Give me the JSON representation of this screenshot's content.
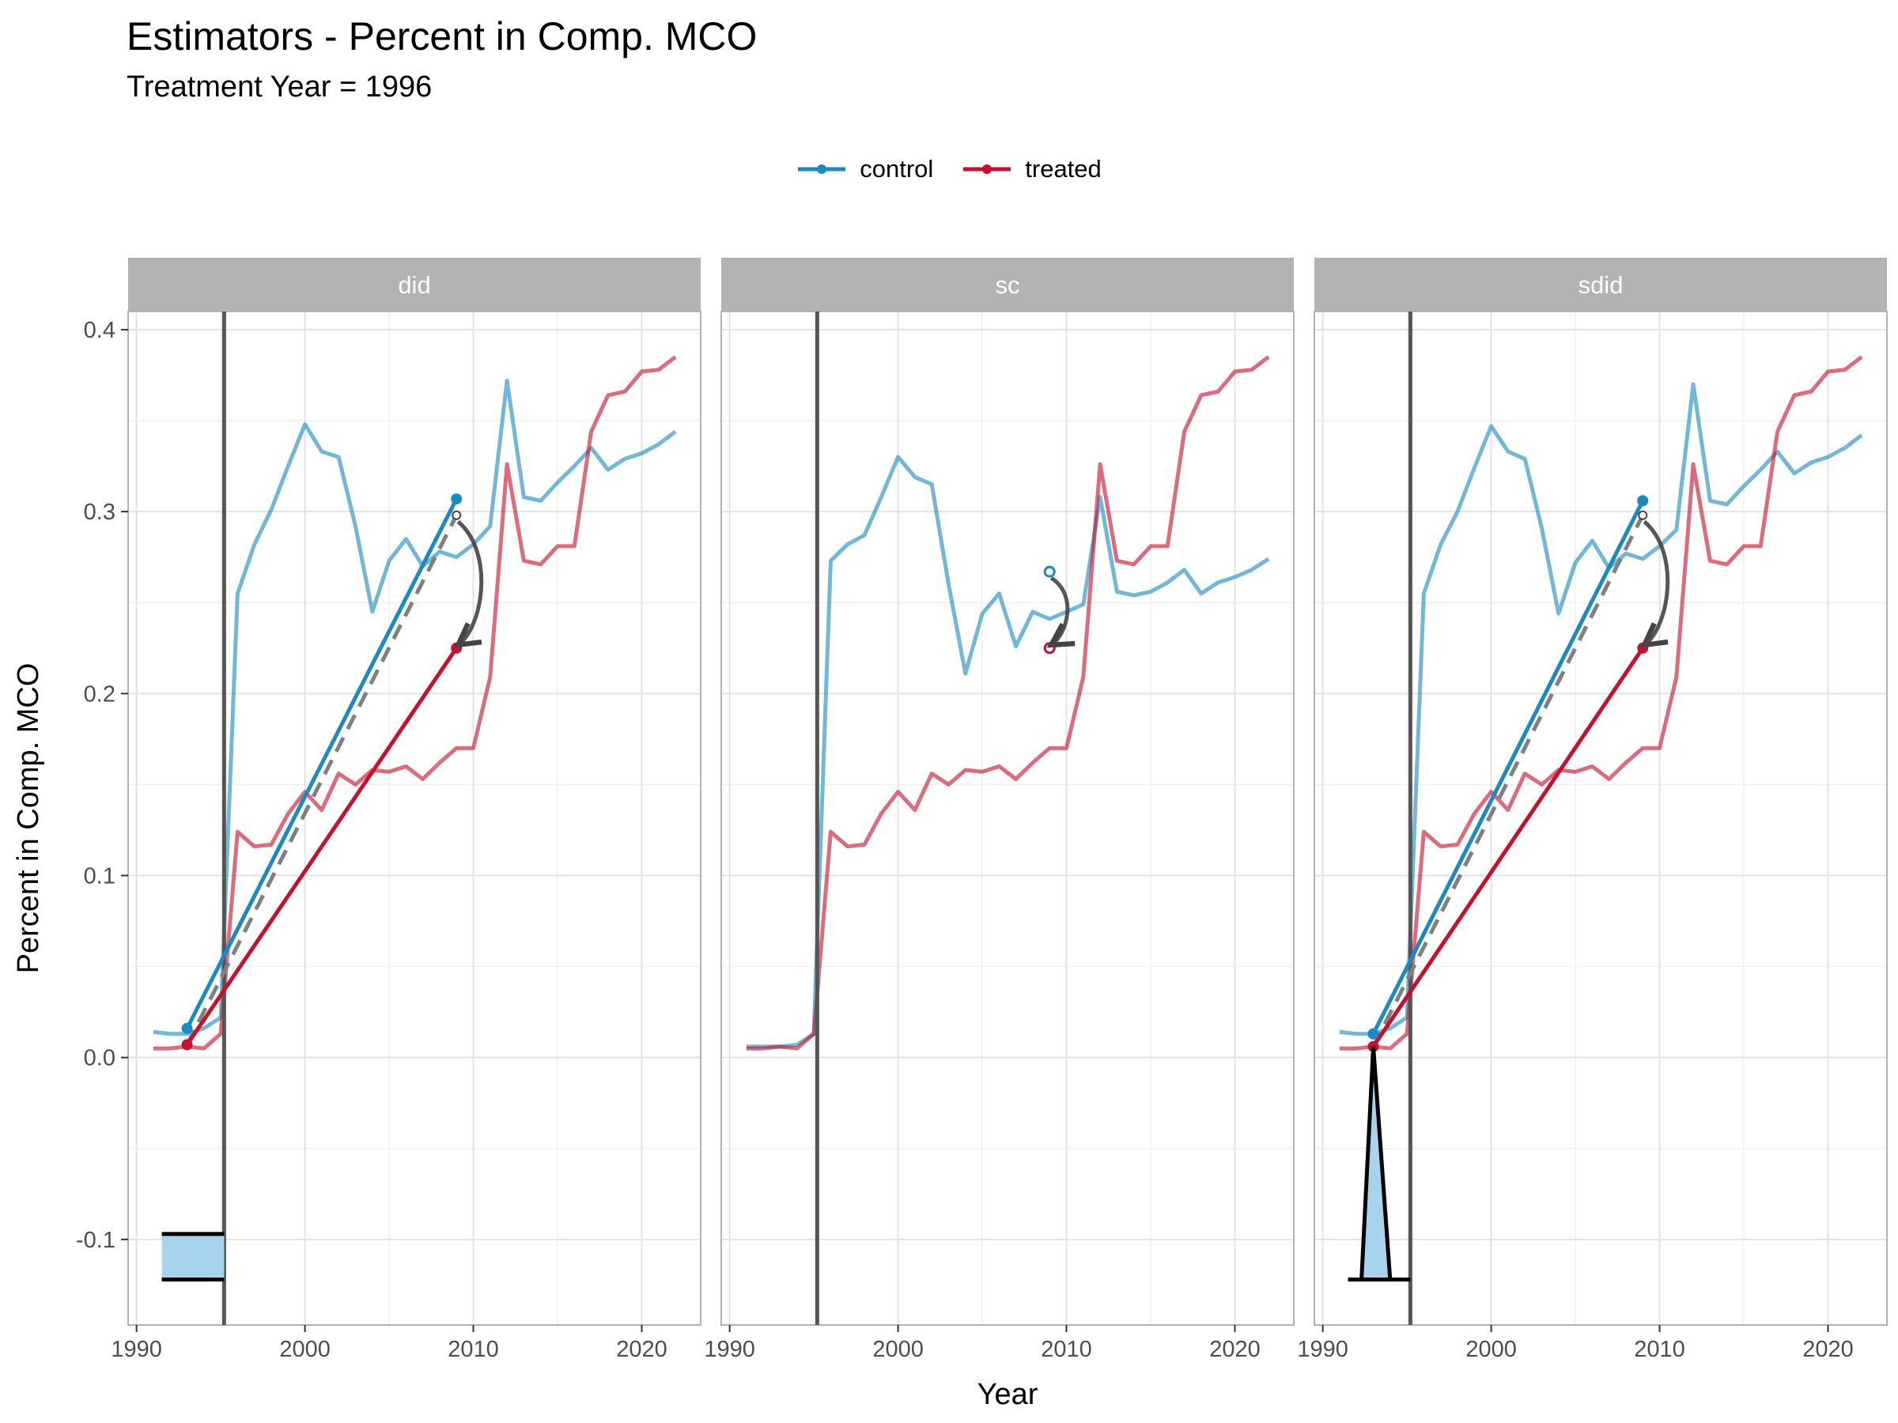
{
  "title": "Estimators - Percent in Comp. MCO",
  "subtitle": "Treatment Year = 1996",
  "legend": {
    "items": [
      {
        "label": "control",
        "color": "#1a8ac3"
      },
      {
        "label": "treated",
        "color": "#c8102e"
      }
    ],
    "placement": "top"
  },
  "chart_data": {
    "type": "line",
    "xlabel": "Year",
    "ylabel": "Percent in Comp. MCO",
    "xlim": [
      1989.5,
      2023.5
    ],
    "ylim": [
      -0.147,
      0.41
    ],
    "x_ticks": [
      1990,
      2000,
      2010,
      2020
    ],
    "x_tick_labels": [
      "1990",
      "2000",
      "2010",
      "2020"
    ],
    "y_ticks": [
      -0.1,
      0.0,
      0.1,
      0.2,
      0.3,
      0.4
    ],
    "y_tick_labels": [
      "-0.1",
      "0.0",
      "0.1",
      "0.2",
      "0.3",
      "0.4"
    ],
    "grid": true,
    "treatment_line_x": 1995.2,
    "panels": [
      {
        "facet": "did",
        "series": [
          {
            "name": "control",
            "x": [
              1991,
              1992,
              1993,
              1994,
              1995,
              1996,
              1997,
              1998,
              1999,
              2000,
              2001,
              2002,
              2003,
              2004,
              2005,
              2006,
              2007,
              2008,
              2009,
              2010,
              2011,
              2012,
              2013,
              2014,
              2015,
              2016,
              2017,
              2018,
              2019,
              2020,
              2021,
              2022
            ],
            "values": [
              0.014,
              0.013,
              0.013,
              0.016,
              0.022,
              0.255,
              0.282,
              0.301,
              0.325,
              0.348,
              0.333,
              0.33,
              0.292,
              0.245,
              0.273,
              0.285,
              0.27,
              0.278,
              0.275,
              0.282,
              0.292,
              0.372,
              0.308,
              0.306,
              0.316,
              0.325,
              0.335,
              0.323,
              0.329,
              0.332,
              0.337,
              0.344
            ]
          },
          {
            "name": "treated",
            "x": [
              1991,
              1992,
              1993,
              1994,
              1995,
              1996,
              1997,
              1998,
              1999,
              2000,
              2001,
              2002,
              2003,
              2004,
              2005,
              2006,
              2007,
              2008,
              2009,
              2010,
              2011,
              2012,
              2013,
              2014,
              2015,
              2016,
              2017,
              2018,
              2019,
              2020,
              2021,
              2022
            ],
            "values": [
              0.005,
              0.005,
              0.006,
              0.005,
              0.013,
              0.124,
              0.116,
              0.117,
              0.134,
              0.146,
              0.136,
              0.156,
              0.15,
              0.158,
              0.157,
              0.16,
              0.153,
              0.162,
              0.17,
              0.17,
              0.209,
              0.326,
              0.273,
              0.271,
              0.281,
              0.281,
              0.344,
              0.364,
              0.366,
              0.377,
              0.378,
              0.385
            ]
          }
        ],
        "estimator_lines": {
          "control": {
            "x": [
              1993,
              2009
            ],
            "y": [
              0.016,
              0.307
            ]
          },
          "treated": {
            "x": [
              1993,
              2009
            ],
            "y": [
              0.007,
              0.225
            ]
          },
          "counterfactual": {
            "x": [
              1993,
              2009
            ],
            "y": [
              0.007,
              0.298
            ]
          },
          "arrow": {
            "x": [
              2009,
              2009
            ],
            "y": [
              0.298,
              0.225
            ]
          }
        },
        "weights": {
          "x": [
            1991.5,
            1995.2
          ],
          "y_baseline": -0.122,
          "y_top": -0.097
        }
      },
      {
        "facet": "sc",
        "series": [
          {
            "name": "control",
            "x": [
              1991,
              1992,
              1993,
              1994,
              1995,
              1996,
              1997,
              1998,
              1999,
              2000,
              2001,
              2002,
              2003,
              2004,
              2005,
              2006,
              2007,
              2008,
              2009,
              2010,
              2011,
              2012,
              2013,
              2014,
              2015,
              2016,
              2017,
              2018,
              2019,
              2020,
              2021,
              2022
            ],
            "values": [
              0.006,
              0.006,
              0.006,
              0.007,
              0.013,
              0.273,
              0.282,
              0.287,
              0.308,
              0.33,
              0.319,
              0.315,
              0.26,
              0.211,
              0.244,
              0.255,
              0.226,
              0.245,
              0.241,
              0.245,
              0.249,
              0.308,
              0.256,
              0.254,
              0.256,
              0.261,
              0.268,
              0.255,
              0.261,
              0.264,
              0.268,
              0.274
            ]
          },
          {
            "name": "treated",
            "x": [
              1991,
              1992,
              1993,
              1994,
              1995,
              1996,
              1997,
              1998,
              1999,
              2000,
              2001,
              2002,
              2003,
              2004,
              2005,
              2006,
              2007,
              2008,
              2009,
              2010,
              2011,
              2012,
              2013,
              2014,
              2015,
              2016,
              2017,
              2018,
              2019,
              2020,
              2021,
              2022
            ],
            "values": [
              0.005,
              0.005,
              0.006,
              0.005,
              0.013,
              0.124,
              0.116,
              0.117,
              0.134,
              0.146,
              0.136,
              0.156,
              0.15,
              0.158,
              0.157,
              0.16,
              0.153,
              0.162,
              0.17,
              0.17,
              0.209,
              0.326,
              0.273,
              0.271,
              0.281,
              0.281,
              0.344,
              0.364,
              0.366,
              0.377,
              0.378,
              0.385
            ]
          }
        ],
        "estimator_lines": {
          "control_point": {
            "x": 2009,
            "y": 0.267
          },
          "treated_point": {
            "x": 2009,
            "y": 0.225
          },
          "arrow": {
            "x": [
              2009,
              2009
            ],
            "y": [
              0.267,
              0.225
            ]
          }
        }
      },
      {
        "facet": "sdid",
        "series": [
          {
            "name": "control",
            "x": [
              1991,
              1992,
              1993,
              1994,
              1995,
              1996,
              1997,
              1998,
              1999,
              2000,
              2001,
              2002,
              2003,
              2004,
              2005,
              2006,
              2007,
              2008,
              2009,
              2010,
              2011,
              2012,
              2013,
              2014,
              2015,
              2016,
              2017,
              2018,
              2019,
              2020,
              2021,
              2022
            ],
            "values": [
              0.014,
              0.013,
              0.013,
              0.016,
              0.022,
              0.255,
              0.282,
              0.3,
              0.324,
              0.347,
              0.333,
              0.329,
              0.291,
              0.244,
              0.272,
              0.284,
              0.269,
              0.277,
              0.274,
              0.281,
              0.29,
              0.37,
              0.306,
              0.304,
              0.314,
              0.323,
              0.333,
              0.321,
              0.327,
              0.33,
              0.335,
              0.342
            ]
          },
          {
            "name": "treated",
            "x": [
              1991,
              1992,
              1993,
              1994,
              1995,
              1996,
              1997,
              1998,
              1999,
              2000,
              2001,
              2002,
              2003,
              2004,
              2005,
              2006,
              2007,
              2008,
              2009,
              2010,
              2011,
              2012,
              2013,
              2014,
              2015,
              2016,
              2017,
              2018,
              2019,
              2020,
              2021,
              2022
            ],
            "values": [
              0.005,
              0.005,
              0.006,
              0.005,
              0.013,
              0.124,
              0.116,
              0.117,
              0.134,
              0.146,
              0.136,
              0.156,
              0.15,
              0.158,
              0.157,
              0.16,
              0.153,
              0.162,
              0.17,
              0.17,
              0.209,
              0.326,
              0.273,
              0.271,
              0.281,
              0.281,
              0.344,
              0.364,
              0.366,
              0.377,
              0.378,
              0.385
            ]
          }
        ],
        "estimator_lines": {
          "control": {
            "x": [
              1993,
              2009
            ],
            "y": [
              0.013,
              0.306
            ]
          },
          "treated": {
            "x": [
              1993,
              2009
            ],
            "y": [
              0.006,
              0.225
            ]
          },
          "counterfactual": {
            "x": [
              1993,
              2009
            ],
            "y": [
              0.006,
              0.298
            ]
          },
          "arrow": {
            "x": [
              2009,
              2009
            ],
            "y": [
              0.298,
              0.225
            ]
          }
        },
        "weights": {
          "x": [
            1991.5,
            1995.2
          ],
          "y_baseline": -0.122,
          "peak_x": 1993,
          "peak_y": 0.006,
          "triangle_base": [
            1992.3,
            1994.0
          ]
        }
      }
    ]
  }
}
